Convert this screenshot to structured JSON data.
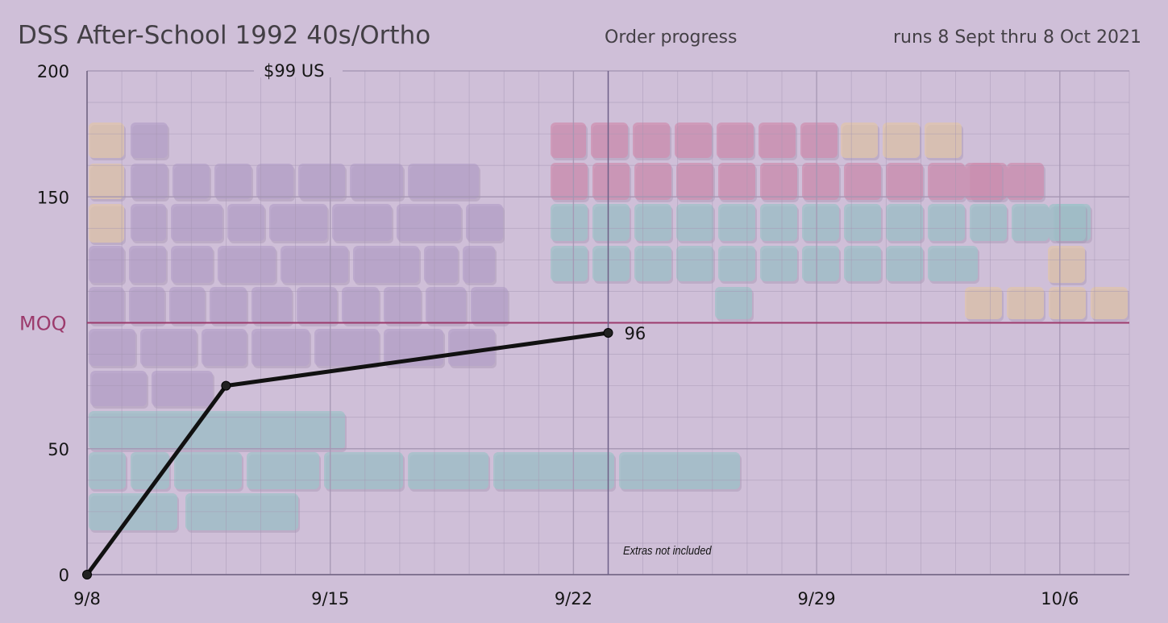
{
  "header": {
    "title": "DSS After-School 1992 40s/Ortho",
    "subtitle": "Order progress",
    "run_dates": "runs 8 Sept thru 8 Oct 2021",
    "price": "$99 US"
  },
  "colors": {
    "background": "#cfbfd8",
    "grid": "#a596b3",
    "line": "#111111",
    "moq": "#9c3a6c",
    "key_purple": "#ad98c6",
    "key_pink": "#cf7fa3",
    "key_teal": "#8fc3c4",
    "key_yellow": "#e6c79c"
  },
  "chart_data": {
    "type": "line",
    "title": "DSS After-School 1992 40s/Ortho",
    "xlabel": "",
    "ylabel": "",
    "x_ticks": [
      "9/8",
      "9/15",
      "9/22",
      "9/29",
      "10/6"
    ],
    "y_ticks": [
      0,
      50,
      150,
      200
    ],
    "xlim": [
      "2021-09-08",
      "2021-10-08"
    ],
    "ylim": [
      0,
      200
    ],
    "grid": true,
    "series": [
      {
        "x": [
          "2021-09-08",
          "2021-09-12",
          "2021-09-23"
        ],
        "values": [
          0,
          75,
          96
        ]
      }
    ],
    "point_labels": [
      {
        "x": "2021-09-23",
        "text": "96"
      }
    ],
    "reference_lines": [
      {
        "axis": "y",
        "value": 100,
        "label": "MOQ"
      },
      {
        "axis": "x",
        "value": "2021-09-23"
      }
    ],
    "annotations": [
      {
        "text": "Extras not included"
      }
    ]
  }
}
